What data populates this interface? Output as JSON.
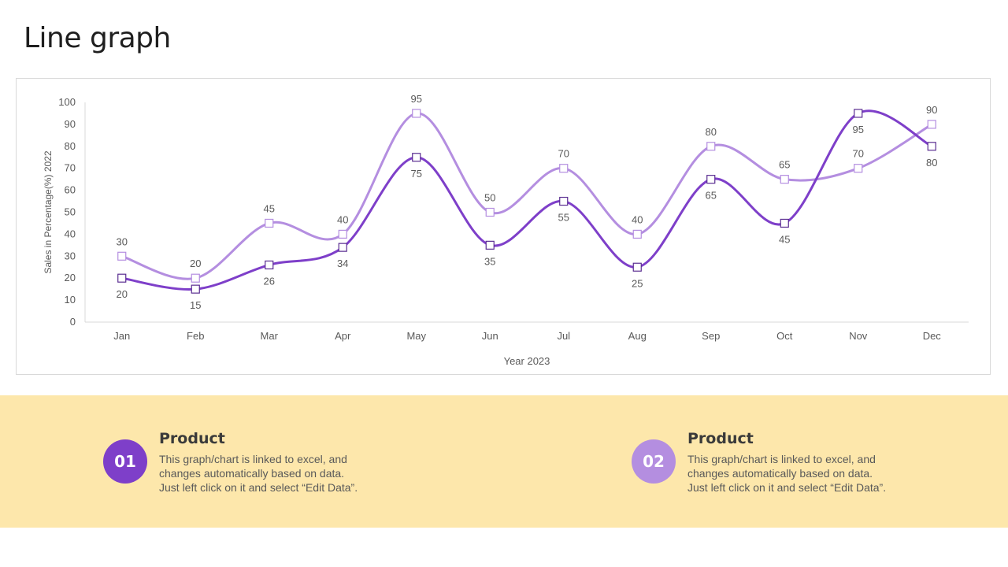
{
  "page": {
    "title": "Line graph"
  },
  "chart_data": {
    "type": "line",
    "categories": [
      "Jan",
      "Feb",
      "Mar",
      "Apr",
      "May",
      "Jun",
      "Jul",
      "Aug",
      "Sep",
      "Oct",
      "Nov",
      "Dec"
    ],
    "series": [
      {
        "values": [
          30,
          20,
          45,
          40,
          95,
          50,
          70,
          40,
          80,
          65,
          70,
          90
        ],
        "color": "#b48ee0",
        "label_position": "above"
      },
      {
        "values": [
          20,
          15,
          26,
          34,
          75,
          35,
          55,
          25,
          65,
          45,
          95,
          80
        ],
        "color": "#7e3fc9",
        "label_position": "below"
      }
    ],
    "title": "",
    "xlabel": "Year 2023",
    "ylabel": "Sales in Percentage(%) 2022",
    "ylim": [
      0,
      100
    ],
    "yticks": [
      0,
      10,
      20,
      30,
      40,
      50,
      60,
      70,
      80,
      90,
      100
    ],
    "grid": false,
    "smooth": true,
    "marker": "square"
  },
  "cards": [
    {
      "number": "01",
      "color": "#7e3fc9",
      "title": "Product",
      "lines": [
        "This graph/chart is linked to excel, and",
        "changes automatically based on data.",
        "Just left click on it and select “Edit Data”."
      ]
    },
    {
      "number": "02",
      "color": "#b48ee0",
      "title": "Product",
      "lines": [
        "This graph/chart is linked to excel, and",
        "changes automatically based on data.",
        "Just left click on it and select “Edit Data”."
      ]
    }
  ]
}
